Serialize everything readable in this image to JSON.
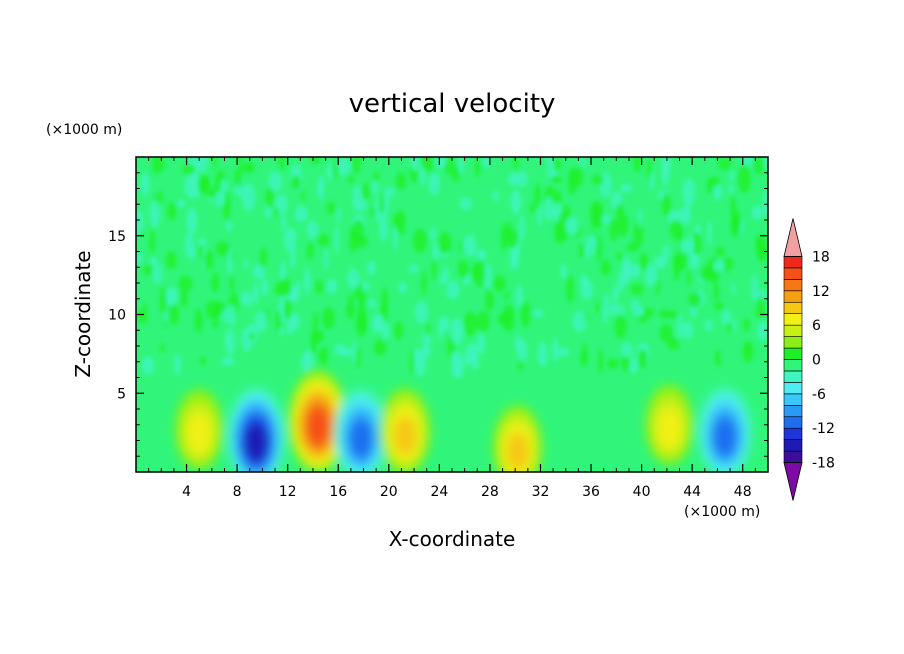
{
  "chart_data": {
    "type": "heatmap",
    "title": "vertical velocity",
    "xlabel": "X-coordinate",
    "ylabel": "Z-coordinate",
    "x_unit": "(×1000 m)",
    "y_unit": "(×1000 m)",
    "xlim": [
      0,
      50
    ],
    "ylim": [
      0,
      20
    ],
    "x_ticks": [
      4,
      8,
      12,
      16,
      20,
      24,
      28,
      32,
      36,
      40,
      44,
      48
    ],
    "y_ticks": [
      5,
      10,
      15
    ],
    "colorbar": {
      "range": [
        -20,
        20
      ],
      "step": 2,
      "tick_values": [
        18,
        12,
        6,
        0,
        -6,
        -12,
        -18
      ],
      "colors": [
        "#7e0aa6",
        "#3c0c9a",
        "#1e1ab4",
        "#1f35d8",
        "#1f6ef0",
        "#2a9bf5",
        "#38c8fa",
        "#50ecf0",
        "#40f5c0",
        "#30f57a",
        "#1ef028",
        "#8cf018",
        "#c8f012",
        "#f0f014",
        "#f5c812",
        "#f5a012",
        "#f57814",
        "#f55018",
        "#f0281a",
        "#d21414",
        "#f0a0a0"
      ],
      "extend": "both"
    },
    "features": [
      {
        "x": 5,
        "z": 2.7,
        "peak": 6
      },
      {
        "x": 9.5,
        "z": 2.2,
        "peak": -13
      },
      {
        "x": 14.4,
        "z": 3.2,
        "peak": 14
      },
      {
        "x": 17.8,
        "z": 2.4,
        "peak": -10
      },
      {
        "x": 21.3,
        "z": 2.6,
        "peak": 8
      },
      {
        "x": 30.2,
        "z": 1.6,
        "peak": 7
      },
      {
        "x": 42.2,
        "z": 3.0,
        "peak": 6
      },
      {
        "x": 46.6,
        "z": 2.5,
        "peak": -10
      }
    ]
  }
}
